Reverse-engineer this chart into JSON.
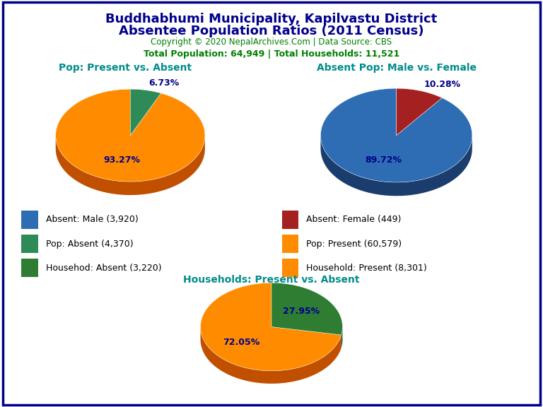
{
  "title_line1": "Buddhabhumi Municipality, Kapilvastu District",
  "title_line2": "Absentee Population Ratios (2011 Census)",
  "copyright": "Copyright © 2020 NepalArchives.Com | Data Source: CBS",
  "stats": "Total Population: 64,949 | Total Households: 11,521",
  "title_color": "#00008B",
  "copyright_color": "#008000",
  "stats_color": "#008000",
  "pie_title_color": "#008B8B",
  "pie1_title": "Pop: Present vs. Absent",
  "pie1_values": [
    93.27,
    6.73
  ],
  "pie1_colors": [
    "#FF8C00",
    "#2E8B57"
  ],
  "pie1_shadow_colors": [
    "#C05000",
    "#1A5C32"
  ],
  "pie1_labels": [
    "93.27%",
    "6.73%"
  ],
  "pie1_startangle": 90,
  "pie2_title": "Absent Pop: Male vs. Female",
  "pie2_values": [
    89.72,
    10.28
  ],
  "pie2_colors": [
    "#2E6DB4",
    "#A52020"
  ],
  "pie2_shadow_colors": [
    "#1A3D6E",
    "#6B1010"
  ],
  "pie2_labels": [
    "89.72%",
    "10.28%"
  ],
  "pie2_startangle": 90,
  "pie3_title": "Households: Present vs. Absent",
  "pie3_values": [
    72.05,
    27.95
  ],
  "pie3_colors": [
    "#FF8C00",
    "#2E7D32"
  ],
  "pie3_shadow_colors": [
    "#C05000",
    "#1A5C20"
  ],
  "pie3_labels": [
    "72.05%",
    "27.95%"
  ],
  "pie3_startangle": 90,
  "label_color": "#00008B",
  "legend_items": [
    {
      "label": "Absent: Male (3,920)",
      "color": "#2E6DB4"
    },
    {
      "label": "Absent: Female (449)",
      "color": "#A52020"
    },
    {
      "label": "Pop: Absent (4,370)",
      "color": "#2E8B57"
    },
    {
      "label": "Pop: Present (60,579)",
      "color": "#FF8C00"
    },
    {
      "label": "Househod: Absent (3,220)",
      "color": "#2E7D32"
    },
    {
      "label": "Household: Present (8,301)",
      "color": "#FF8C00"
    }
  ],
  "background_color": "#FFFFFF",
  "border_color": "#00008B"
}
